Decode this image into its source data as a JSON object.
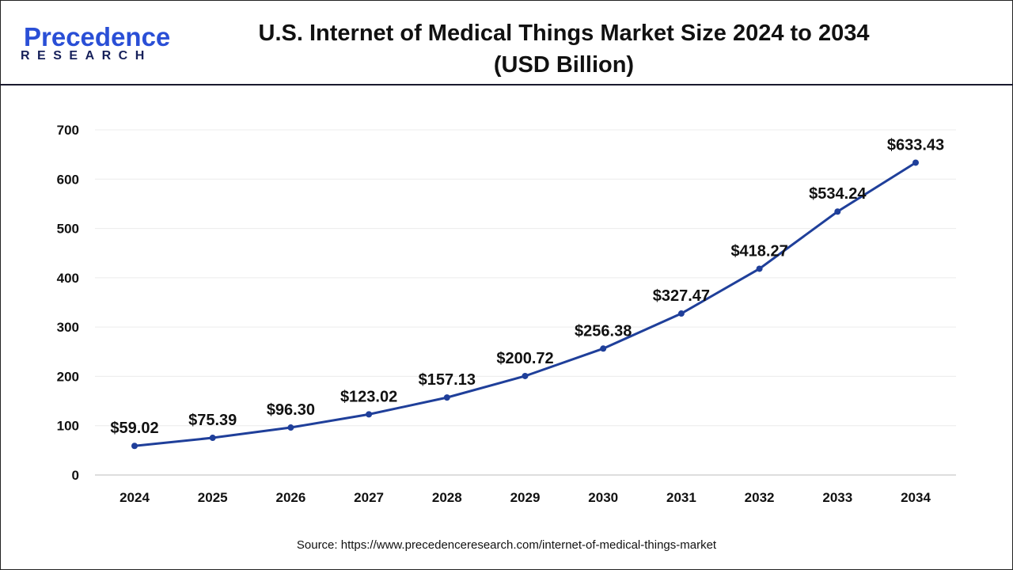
{
  "header": {
    "logo_text": "Precedence",
    "logo_subtext": "RESEARCH",
    "title_line1": "U.S. Internet of Medical Things Market Size 2024 to 2034",
    "title_line2": "(USD Billion)"
  },
  "source": "Source: https://www.precedenceresearch.com/internet-of-medical-things-market",
  "colors": {
    "line": "#1f3f9a",
    "logo_blue": "#2a4fd6",
    "logo_navy": "#16205a"
  },
  "chart_data": {
    "type": "line",
    "title": "U.S. Internet of Medical Things Market Size 2024 to 2034 (USD Billion)",
    "categories": [
      "2024",
      "2025",
      "2026",
      "2027",
      "2028",
      "2029",
      "2030",
      "2031",
      "2032",
      "2033",
      "2034"
    ],
    "values": [
      59.02,
      75.39,
      96.3,
      123.02,
      157.13,
      200.72,
      256.38,
      327.47,
      418.27,
      534.24,
      633.43
    ],
    "data_labels": [
      "$59.02",
      "$75.39",
      "$96.30",
      "$123.02",
      "$157.13",
      "$200.72",
      "$256.38",
      "$327.47",
      "$418.27",
      "$534.24",
      "$633.43"
    ],
    "ylim": [
      0,
      700
    ],
    "yticks": [
      "0",
      "100",
      "200",
      "300",
      "400",
      "500",
      "600",
      "700"
    ],
    "grid": true,
    "legend": "none"
  }
}
